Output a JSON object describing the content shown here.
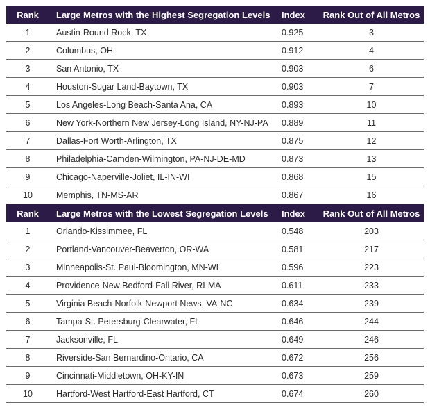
{
  "sections": [
    {
      "headers": {
        "rank": "Rank",
        "metro": "Large Metros with the Highest Segregation Levels",
        "index": "Index",
        "rank_all": "Rank Out of All Metros"
      },
      "rows": [
        {
          "rank": "1",
          "metro": "Austin-Round Rock, TX",
          "index": "0.925",
          "rank_all": "3"
        },
        {
          "rank": "2",
          "metro": "Columbus, OH",
          "index": "0.912",
          "rank_all": "4"
        },
        {
          "rank": "3",
          "metro": "San Antonio, TX",
          "index": "0.903",
          "rank_all": "6"
        },
        {
          "rank": "4",
          "metro": "Houston-Sugar Land-Baytown, TX",
          "index": "0.903",
          "rank_all": "7"
        },
        {
          "rank": "5",
          "metro": "Los Angeles-Long Beach-Santa Ana, CA",
          "index": "0.893",
          "rank_all": "10"
        },
        {
          "rank": "6",
          "metro": "New York-Northern New Jersey-Long Island, NY-NJ-PA",
          "index": "0.889",
          "rank_all": "11"
        },
        {
          "rank": "7",
          "metro": "Dallas-Fort Worth-Arlington, TX",
          "index": "0.875",
          "rank_all": "12"
        },
        {
          "rank": "8",
          "metro": "Philadelphia-Camden-Wilmington, PA-NJ-DE-MD",
          "index": "0.873",
          "rank_all": "13"
        },
        {
          "rank": "9",
          "metro": "Chicago-Naperville-Joliet, IL-IN-WI",
          "index": "0.868",
          "rank_all": "15"
        },
        {
          "rank": "10",
          "metro": "Memphis, TN-MS-AR",
          "index": "0.867",
          "rank_all": "16"
        }
      ]
    },
    {
      "headers": {
        "rank": "Rank",
        "metro": "Large Metros with the Lowest Segregation Levels",
        "index": "Index",
        "rank_all": "Rank Out of All Metros"
      },
      "rows": [
        {
          "rank": "1",
          "metro": "Orlando-Kissimmee, FL",
          "index": "0.548",
          "rank_all": "203"
        },
        {
          "rank": "2",
          "metro": "Portland-Vancouver-Beaverton, OR-WA",
          "index": "0.581",
          "rank_all": "217"
        },
        {
          "rank": "3",
          "metro": "Minneapolis-St. Paul-Bloomington, MN-WI",
          "index": "0.596",
          "rank_all": "223"
        },
        {
          "rank": "4",
          "metro": "Providence-New Bedford-Fall River, RI-MA",
          "index": "0.611",
          "rank_all": "233"
        },
        {
          "rank": "5",
          "metro": "Virginia Beach-Norfolk-Newport News, VA-NC",
          "index": "0.634",
          "rank_all": "239"
        },
        {
          "rank": "6",
          "metro": "Tampa-St. Petersburg-Clearwater, FL",
          "index": "0.646",
          "rank_all": "244"
        },
        {
          "rank": "7",
          "metro": "Jacksonville, FL",
          "index": "0.649",
          "rank_all": "246"
        },
        {
          "rank": "8",
          "metro": "Riverside-San Bernardino-Ontario, CA",
          "index": "0.672",
          "rank_all": "256"
        },
        {
          "rank": "9",
          "metro": "Cincinnati-Middletown, OH-KY-IN",
          "index": "0.673",
          "rank_all": "259"
        },
        {
          "rank": "10",
          "metro": "Hartford-West Hartford-East Hartford, CT",
          "index": "0.674",
          "rank_all": "260"
        }
      ]
    }
  ],
  "colors": {
    "header_bg": "#2c1a47",
    "header_text": "#ffffff",
    "row_divider": "#6b6b6b",
    "body_text": "#2b2b2b"
  }
}
